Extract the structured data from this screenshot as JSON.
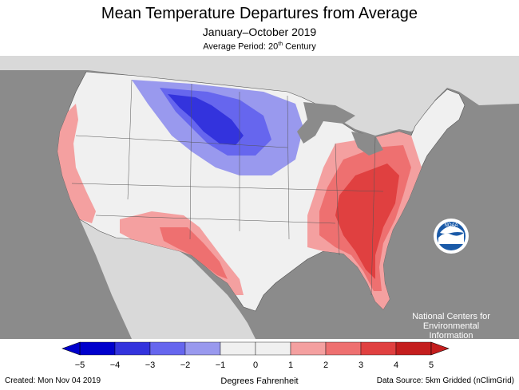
{
  "title": "Mean Temperature Departures from Average",
  "subtitle": "January–October 2019",
  "period": {
    "text": "Average Period: 20",
    "sup": "th",
    "suffix": " Century"
  },
  "map": {
    "background_color": "#8b8b8b",
    "land_neutral_color": "#f0f0f0",
    "neighbor_land_color": "#d9d9d9",
    "lakes_color": "#8b8b8b"
  },
  "legend": {
    "ticks": [
      "−5",
      "−4",
      "−3",
      "−2",
      "−1",
      "0",
      "1",
      "2",
      "3",
      "4",
      "5"
    ],
    "colors": [
      "#0000cc",
      "#3333dd",
      "#6666ee",
      "#9999ee",
      "#f0f0f0",
      "#f0f0f0",
      "#f4a0a0",
      "#ee7070",
      "#e04040",
      "#c41e1e"
    ],
    "unit": "Degrees Fahrenheit"
  },
  "logo": {
    "name": "NOAA",
    "line1": "National Centers for",
    "line2": "Environmental",
    "line3": "Information"
  },
  "footer": {
    "created": "Created: Mon Nov 04 2019",
    "source": "Data Source: 5km Gridded (nClimGrid)"
  }
}
